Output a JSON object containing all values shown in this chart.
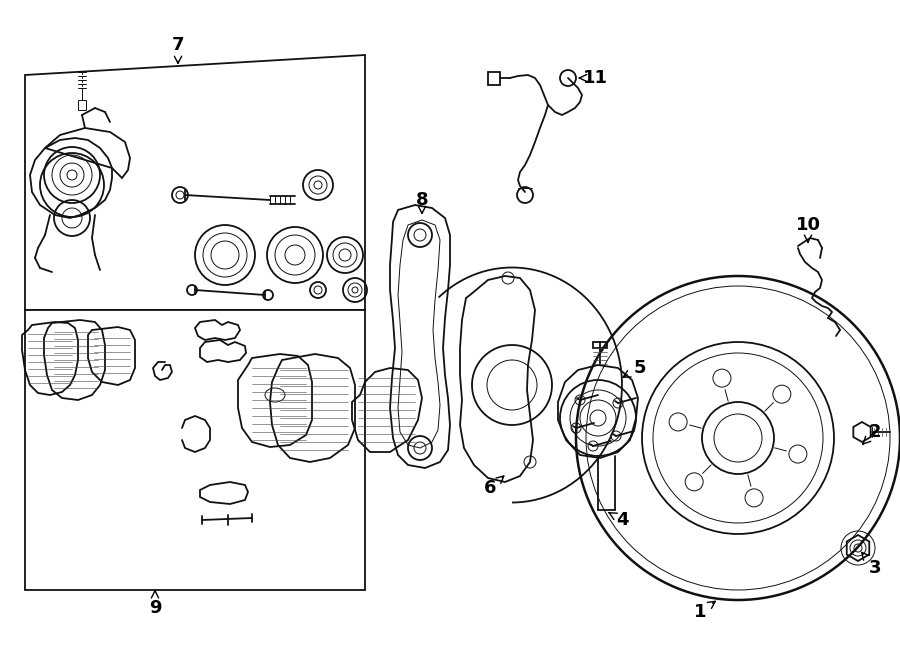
{
  "bg_color": "#ffffff",
  "line_color": "#111111",
  "figsize": [
    9.0,
    6.62
  ],
  "dpi": 100,
  "lw_main": 1.3,
  "lw_thin": 0.7,
  "lw_thick": 1.8
}
